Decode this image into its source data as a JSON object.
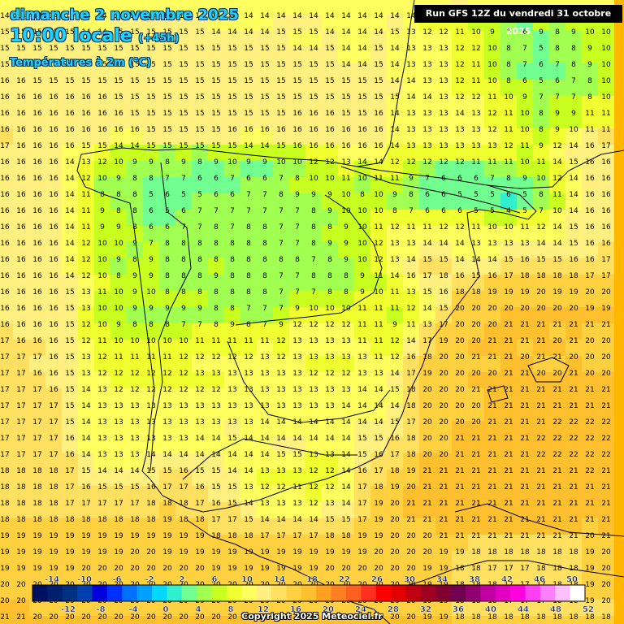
{
  "header": {
    "date_line": "dimanche 2 novembre 2025",
    "time_line": "10:00 locale",
    "lead_time": "(+45h)",
    "parameter": "Températures à 2m (°C)"
  },
  "run_info": "Run GFS 12Z du vendredi 31 octobre 2025",
  "copyright": "Copyright 2025 Meteociel.fr",
  "legend": {
    "top_labels": [
      "-14",
      "-10",
      "-6",
      "-2",
      "2",
      "6",
      "10",
      "14",
      "18",
      "22",
      "26",
      "30",
      "34",
      "38",
      "42",
      "46",
      "50"
    ],
    "bottom_labels": [
      "-12",
      "-8",
      "-4",
      "0",
      "4",
      "8",
      "12",
      "16",
      "20",
      "24",
      "28",
      "32",
      "36",
      "40",
      "44",
      "48",
      "52"
    ],
    "colors": [
      "#001060",
      "#00206e",
      "#003080",
      "#0040b0",
      "#0000dd",
      "#0030ff",
      "#0070ff",
      "#00a0ff",
      "#00d8ff",
      "#30f0d0",
      "#70ff90",
      "#a0ff50",
      "#c8ff20",
      "#f0ff30",
      "#ffff60",
      "#fff080",
      "#ffe060",
      "#ffd040",
      "#ffc030",
      "#ffa020",
      "#ff8020",
      "#ff6020",
      "#ff3020",
      "#ff0000",
      "#e00000",
      "#c00010",
      "#a00020",
      "#800030",
      "#700050",
      "#900070",
      "#c000a0",
      "#e000c0",
      "#ff00e0",
      "#ff40f0",
      "#ff80ff",
      "#ffc0ff",
      "#ffffff"
    ]
  },
  "grid": [
    "14 14 14 14 14 14 14 14 14 14 14 14 14 14 14 14 14 14 14 14 14 14 14 14 14 14 13 14 15 14 14 14 14 14 13 13 14 14",
    "15 15 15 15 15 14 14 15 15 15 15 15 15 14 14 14 14 15 15 15 14 14 14 14 15 13 12 12 11 10 9 7 6 9 8 9 10 10",
    "15 15 15 15 15 15 15 15 15 15 15 15 15 15 15 15 15 15 14 14 15 14 14 15 14 13 13 13 12 12 10 8 7 5 8 8 9 10",
    "15 15 15 15 15 15 15 15 15 15 15 15 15 15 15 15 15 15 15 15 15 14 14 15 14 13 13 13 12 11 10 8 7 6 7 8 9 10",
    "16 16 15 15 15 15 15 15 15 15 15 15 15 15 15 15 15 15 15 15 15 15 15 15 14 14 13 13 12 11 10 8 6 5 6 7 8 10",
    "16 16 16 16 16 16 16 15 15 15 15 15 15 15 15 15 15 15 15 15 15 15 15 15 15 14 14 13 12 12 11 10 9 7 7 7 8 10",
    "16 16 16 16 16 16 16 16 15 15 15 15 15 15 15 15 15 15 16 16 16 15 15 16 14 13 13 13 14 13 12 11 10 8 9 9 11 11",
    "16 16 16 16 16 16 16 16 16 15 15 15 15 15 16 16 16 16 16 16 16 16 16 16 14 13 13 13 13 13 12 11 10 8 9 10 11 11",
    "17 16 16 16 16 15 15 14 14 15 15 15 15 15 15 14 14 15 16 16 16 16 16 16 14 13 13 13 13 13 13 12 11 9 12 14 16 17",
    "16 16 16 16 14 13 12 10 9 9 8 9 8 9 10 9 9 10 10 12 12 13 14 14 12 12 12 12 12 11 11 11 10 11 14 15 16 16",
    "16 16 16 16 14 12 10 9 8 8 7 7 6 6 7 6 6 7 8 10 10 11 10 11 11 9 7 6 6 6 7 8 9 10 12 14 16 16",
    "16 16 16 16 14 11 8 8 8 5 6 5 5 6 6 7 7 8 9 9 9 10 8 10 9 8 6 6 5 5 5 6 5 8 11 14 16 16",
    "16 16 16 16 14 11 9 8 8 6 5 6 7 7 7 7 7 7 7 8 9 10 10 10 8 7 6 6 6 5 5 4 5 7 10 14 16 16",
    "16 16 16 16 14 11 9 9 8 6 6 7 7 8 7 8 8 7 7 8 8 9 10 11 12 11 11 12 12 11 10 10 11 12 14 15 16 16",
    "16 16 16 16 14 12 10 10 9 7 8 8 8 8 8 8 8 7 7 8 9 9 10 12 13 13 14 14 14 13 13 13 13 14 14 15 16 16",
    "16 16 16 16 14 12 10 9 8 9 8 8 8 8 8 8 8 8 8 7 8 9 10 12 13 14 15 15 14 14 14 15 16 15 15 16 16 17",
    "16 16 16 16 14 12 10 8 9 9 8 8 8 9 8 8 8 7 7 8 8 8 9 11 14 16 17 18 16 15 16 17 18 18 18 18 17 17",
    "16 16 16 16 15 13 11 10 9 10 8 8 8 8 8 8 8 7 7 7 8 8 9 10 11 13 15 16 18 18 19 19 19 20 19 19 20 20",
    "16 16 16 16 15 13 10 10 9 9 9 9 9 8 8 7 7 7 9 10 10 10 11 11 11 12 14 15 20 20 20 20 20 20 20 20 19 19",
    "16 16 16 16 15 12 10 9 8 8 8 7 7 8 9 8 7 9 12 12 12 12 11 11 9 11 13 17 20 20 20 21 21 21 21 21 21 21",
    "17 16 16 16 15 12 11 10 10 10 10 10 11 11 11 11 11 12 13 13 13 13 11 11 12 14 17 19 20 20 21 21 21 21 20 21 20 20",
    "17 17 17 16 15 13 12 11 11 11 11 12 12 12 12 12 13 12 13 13 13 13 13 11 12 16 18 20 20 21 21 21 20 21 21 20 20 20",
    "17 17 16 16 15 13 12 12 12 12 12 12 13 13 13 13 13 13 13 12 12 12 13 13 14 17 19 20 20 20 20 21 21 20 20 21 20 20",
    "17 17 17 16 15 14 13 12 12 12 12 12 12 12 13 13 13 13 13 13 13 13 14 14 15 18 20 20 20 21 21 21 21 21 21 21 21 21",
    "17 17 17 17 15 14 13 13 13 13 13 13 13 13 13 13 13 13 13 13 13 14 14 14 14 18 20 20 20 20 21 21 21 21 21 21 21 21",
    "17 17 17 17 15 14 13 13 13 13 13 13 13 13 13 13 14 14 14 14 14 14 14 14 15 17 20 20 20 20 21 21 21 21 22 22 22 22",
    "17 17 17 17 16 14 13 13 13 13 13 13 14 14 15 14 14 14 14 14 14 14 15 15 16 18 20 20 21 21 21 21 21 22 22 22 22 22",
    "17 17 17 17 16 14 13 13 13 14 14 14 14 14 14 14 14 15 15 13 13 14 15 16 17 18 20 20 21 21 21 21 21 22 22 22 22 22",
    "18 18 18 18 17 15 14 14 14 15 15 16 15 15 14 14 13 13 13 12 12 14 16 17 18 19 21 21 21 21 21 21 21 21 21 21 22 21",
    "18 18 18 18 17 16 15 15 15 16 17 17 16 15 15 13 12 12 11 12 12 14 17 18 19 20 21 21 21 21 21 21 21 21 21 21 21 21",
    "18 18 18 18 17 17 17 17 17 18 18 18 17 16 15 14 13 13 13 12 13 14 17 19 20 21 21 21 21 21 21 21 21 21 21 21 21 21",
    "18 18 18 18 18 18 18 18 18 18 19 18 18 17 17 15 14 14 14 14 15 15 17 19 20 21 21 21 21 21 21 21 21 21 21 21 21 21",
    "19 19 19 19 19 19 19 19 19 19 19 19 19 18 18 18 17 17 17 17 18 18 19 19 20 20 20 21 21 21 21 21 21 21 21 21 20 21",
    "19 19 19 19 19 19 19 19 20 20 19 19 19 19 19 19 19 19 19 19 19 19 19 20 20 20 20 19 19 18 18 18 18 18 18 18 19 20",
    "19 19 19 19 19 20 20 20 20 20 20 20 20 19 19 19 19 19 19 19 20 20 20 20 20 20 19 19 18 18 17 17 17 18 18 18 19 20",
    "20 20 20 20 20 20 20 20 20 20 20 20 20 20 20 20 20 20 20 20 20 20 20 20 20 20 19 19 18 18 18 17 17 17 18 18 19 20",
    "20 20 20 20 20 20 20 20 20 20 20 20 20 20 20 20 20 20 20 20 20 20 20 20 20 20 19 19 18 18 18 17 17 17 18 18 19 20",
    "21 21 20 20 20 20 20 20 20 20 20 20 20 20 20 20 20 20 20 20 20 20 20 20 20 20 19 19 18 18 18 18 18 18 18 18 18 18",
    "21 21 21 21 21 21 21 21 21 21 21 21 21 21 21 21 21 21 21 21 21 21 21 21 21 21 21 21 20 20 19 19 19 19 19 19 19 19"
  ]
}
